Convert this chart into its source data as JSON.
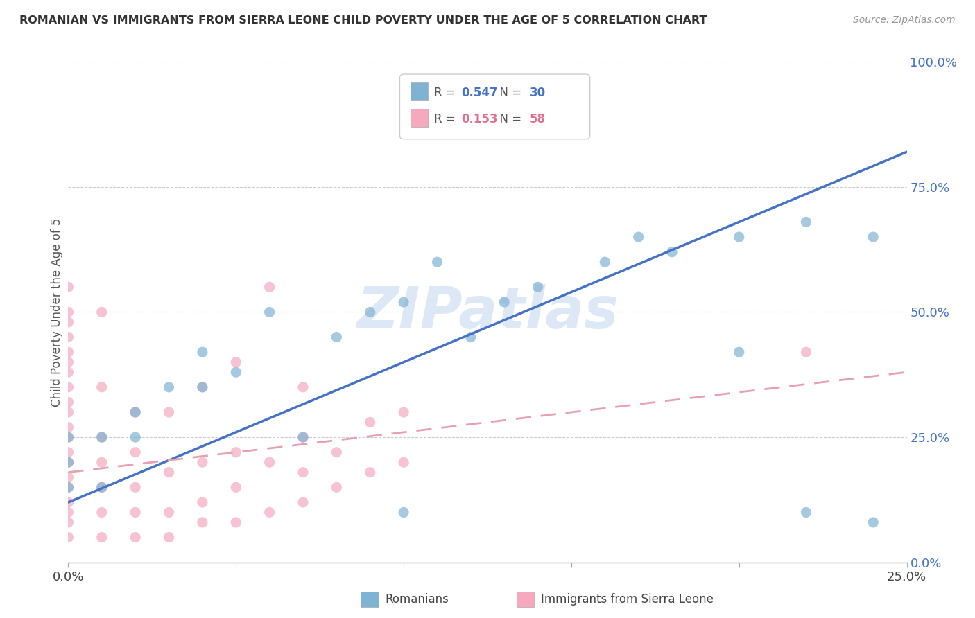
{
  "title": "ROMANIAN VS IMMIGRANTS FROM SIERRA LEONE CHILD POVERTY UNDER THE AGE OF 5 CORRELATION CHART",
  "source": "Source: ZipAtlas.com",
  "ylabel": "Child Poverty Under the Age of 5",
  "xlim": [
    0.0,
    0.25
  ],
  "ylim": [
    0.0,
    1.0
  ],
  "xtick_vals": [
    0.0,
    0.05,
    0.1,
    0.15,
    0.2,
    0.25
  ],
  "xtick_labels": [
    "0.0%",
    "",
    "",
    "",
    "",
    "25.0%"
  ],
  "ytick_vals_right": [
    0.0,
    0.25,
    0.5,
    0.75,
    1.0
  ],
  "ytick_labels_right": [
    "0.0%",
    "25.0%",
    "50.0%",
    "75.0%",
    "100.0%"
  ],
  "r_romanian": 0.547,
  "n_romanian": 30,
  "r_sierraleone": 0.153,
  "n_sierraleone": 58,
  "romanian_color": "#7fb3d3",
  "sierraleone_color": "#f5a8be",
  "romanian_line_color": "#4472c4",
  "sierraleone_line_color": "#e8a0b0",
  "watermark": "ZIPatlas",
  "background_color": "#ffffff",
  "rom_x": [
    0.0,
    0.0,
    0.0,
    0.01,
    0.01,
    0.02,
    0.02,
    0.03,
    0.04,
    0.04,
    0.05,
    0.06,
    0.07,
    0.08,
    0.09,
    0.1,
    0.1,
    0.11,
    0.12,
    0.13,
    0.14,
    0.16,
    0.17,
    0.18,
    0.2,
    0.2,
    0.22,
    0.22,
    0.24,
    0.24
  ],
  "rom_y": [
    0.15,
    0.2,
    0.25,
    0.15,
    0.25,
    0.25,
    0.3,
    0.35,
    0.35,
    0.42,
    0.38,
    0.5,
    0.25,
    0.45,
    0.5,
    0.52,
    0.1,
    0.6,
    0.45,
    0.52,
    0.55,
    0.6,
    0.65,
    0.62,
    0.65,
    0.42,
    0.68,
    0.1,
    0.65,
    0.08
  ],
  "sl_x": [
    0.0,
    0.0,
    0.0,
    0.0,
    0.0,
    0.0,
    0.0,
    0.0,
    0.0,
    0.0,
    0.0,
    0.0,
    0.0,
    0.0,
    0.0,
    0.0,
    0.0,
    0.0,
    0.0,
    0.0,
    0.01,
    0.01,
    0.01,
    0.01,
    0.01,
    0.01,
    0.01,
    0.02,
    0.02,
    0.02,
    0.02,
    0.02,
    0.03,
    0.03,
    0.03,
    0.03,
    0.04,
    0.04,
    0.04,
    0.04,
    0.05,
    0.05,
    0.05,
    0.05,
    0.06,
    0.06,
    0.06,
    0.07,
    0.07,
    0.07,
    0.07,
    0.08,
    0.08,
    0.09,
    0.09,
    0.1,
    0.1,
    0.22
  ],
  "sl_y": [
    0.05,
    0.08,
    0.1,
    0.12,
    0.15,
    0.17,
    0.2,
    0.22,
    0.25,
    0.27,
    0.3,
    0.32,
    0.35,
    0.38,
    0.4,
    0.42,
    0.45,
    0.48,
    0.5,
    0.55,
    0.05,
    0.1,
    0.15,
    0.2,
    0.25,
    0.35,
    0.5,
    0.05,
    0.1,
    0.15,
    0.22,
    0.3,
    0.05,
    0.1,
    0.18,
    0.3,
    0.08,
    0.12,
    0.2,
    0.35,
    0.08,
    0.15,
    0.22,
    0.4,
    0.1,
    0.2,
    0.55,
    0.12,
    0.18,
    0.25,
    0.35,
    0.15,
    0.22,
    0.18,
    0.28,
    0.2,
    0.3,
    0.42
  ]
}
